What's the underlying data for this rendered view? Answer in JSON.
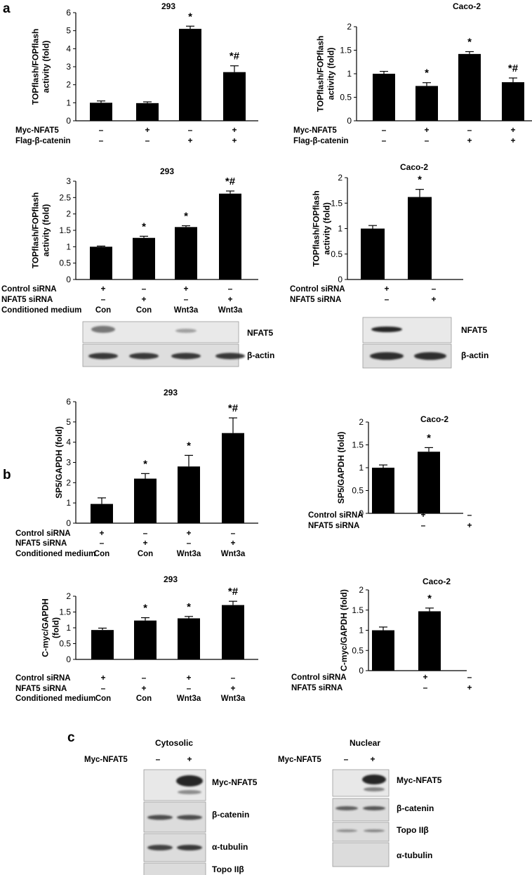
{
  "panels": [
    {
      "id": "a",
      "label": "a"
    },
    {
      "id": "b",
      "label": "b"
    },
    {
      "id": "c",
      "label": "c"
    }
  ],
  "chart_data": [
    {
      "id": "a1",
      "panel": "a",
      "type": "bar",
      "title": "293",
      "ylabel": [
        "TOPflash/FOPflash",
        "activity (fold)"
      ],
      "ylim": [
        0,
        6
      ],
      "yticks": [
        "0",
        "1",
        "2",
        "3",
        "4",
        "5",
        "6"
      ],
      "values": [
        1.0,
        0.98,
        5.1,
        2.7
      ],
      "errors": [
        0.1,
        0.07,
        0.15,
        0.35
      ],
      "annotations": [
        "",
        "",
        "*",
        "*#"
      ],
      "conditions": [
        {
          "label": "Myc-NFAT5",
          "values": [
            "–",
            "+",
            "–",
            "+"
          ]
        },
        {
          "label": "Flag-β-catenin",
          "values": [
            "–",
            "–",
            "+",
            "+"
          ]
        }
      ]
    },
    {
      "id": "a2",
      "panel": "a",
      "type": "bar",
      "title": "Caco-2",
      "ylabel": [
        "TOPflash/FOPflash",
        "activity (fold)"
      ],
      "ylim": [
        0,
        2
      ],
      "yticks": [
        "0",
        "0.5",
        "1",
        "1.5",
        "2"
      ],
      "values": [
        1.0,
        0.74,
        1.42,
        0.82
      ],
      "errors": [
        0.05,
        0.07,
        0.05,
        0.09
      ],
      "annotations": [
        "",
        "*",
        "*",
        "*#"
      ],
      "conditions": [
        {
          "label": "Myc-NFAT5",
          "values": [
            "–",
            "+",
            "–",
            "+"
          ]
        },
        {
          "label": "Flag-β-catenin",
          "values": [
            "–",
            "–",
            "+",
            "+"
          ]
        }
      ]
    },
    {
      "id": "a3",
      "panel": "a",
      "type": "bar",
      "title": "293",
      "ylabel": [
        "TOPflash/FOPflash",
        "activity (fold)"
      ],
      "ylim": [
        0,
        3
      ],
      "yticks": [
        "0",
        "0.5",
        "1",
        "1.5",
        "2",
        "2.5",
        "3"
      ],
      "values": [
        1.0,
        1.27,
        1.6,
        2.62
      ],
      "errors": [
        0.02,
        0.05,
        0.04,
        0.08
      ],
      "annotations": [
        "",
        "*",
        "*",
        "*#"
      ],
      "conditions": [
        {
          "label": "Control siRNA",
          "values": [
            "+",
            "–",
            "+",
            "–"
          ]
        },
        {
          "label": "NFAT5 siRNA",
          "values": [
            "–",
            "+",
            "–",
            "+"
          ]
        },
        {
          "label": "Conditioned medium",
          "values": [
            "Con",
            "Con",
            "Wnt3a",
            "Wnt3a"
          ]
        }
      ]
    },
    {
      "id": "a4",
      "panel": "a",
      "type": "bar",
      "title": "Caco-2",
      "ylabel": [
        "TOPflash/FOPflash",
        "activity (fold)"
      ],
      "ylim": [
        0,
        2
      ],
      "yticks": [
        "0",
        "0.5",
        "1",
        "1.5",
        "2"
      ],
      "values": [
        1.0,
        1.62
      ],
      "errors": [
        0.06,
        0.15
      ],
      "annotations": [
        "",
        "*"
      ],
      "conditions": [
        {
          "label": "Control siRNA",
          "values": [
            "+",
            "–"
          ]
        },
        {
          "label": "NFAT5 siRNA",
          "values": [
            "–",
            "+"
          ]
        }
      ]
    },
    {
      "id": "b1",
      "panel": "b",
      "type": "bar",
      "title": "293",
      "ylabel": [
        "SP5/GAPDH (fold)"
      ],
      "ylim": [
        0,
        6
      ],
      "yticks": [
        "0",
        "1",
        "2",
        "3",
        "4",
        "5",
        "6"
      ],
      "values": [
        0.95,
        2.2,
        2.8,
        4.45
      ],
      "errors": [
        0.3,
        0.25,
        0.55,
        0.75
      ],
      "annotations": [
        "",
        "*",
        "*",
        "*#"
      ],
      "conditions": [
        {
          "label": "Control siRNA",
          "values": [
            "+",
            "–",
            "+",
            "–"
          ]
        },
        {
          "label": "NFAT5 siRNA",
          "values": [
            "–",
            "+",
            "–",
            "+"
          ]
        },
        {
          "label": "Conditioned medium",
          "values": [
            "Con",
            "Con",
            "Wnt3a",
            "Wnt3a"
          ]
        }
      ]
    },
    {
      "id": "b2",
      "panel": "b",
      "type": "bar",
      "title": "Caco-2",
      "ylabel": [
        "SP5/GAPDH (fold)"
      ],
      "ylim": [
        0,
        2
      ],
      "yticks": [
        "0",
        "0.5",
        "1",
        "1.5",
        "2"
      ],
      "values": [
        1.0,
        1.35
      ],
      "errors": [
        0.06,
        0.09
      ],
      "annotations": [
        "",
        "*"
      ],
      "conditions": [
        {
          "label": "Control siRNA",
          "values": [
            "+",
            "–"
          ]
        },
        {
          "label": "NFAT5 siRNA",
          "values": [
            "–",
            "+"
          ]
        }
      ]
    },
    {
      "id": "b3",
      "panel": "b",
      "type": "bar",
      "title": "293",
      "ylabel": [
        "C-myc/GAPDH",
        "(fold)"
      ],
      "ylim": [
        0,
        2
      ],
      "yticks": [
        "0",
        "0.5",
        "1",
        "1.5",
        "2"
      ],
      "values": [
        0.93,
        1.23,
        1.3,
        1.72
      ],
      "errors": [
        0.06,
        0.09,
        0.06,
        0.12
      ],
      "annotations": [
        "",
        "*",
        "*",
        "*#"
      ],
      "conditions": [
        {
          "label": "Control siRNA",
          "values": [
            "+",
            "–",
            "+",
            "–"
          ]
        },
        {
          "label": "NFAT5 siRNA",
          "values": [
            "–",
            "+",
            "–",
            "+"
          ]
        },
        {
          "label": "Conditioned medium",
          "values": [
            "Con",
            "Con",
            "Wnt3a",
            "Wnt3a"
          ]
        }
      ]
    },
    {
      "id": "b4",
      "panel": "b",
      "type": "bar",
      "title": "Caco-2",
      "ylabel": [
        "C-myc/GAPDH (fold)"
      ],
      "ylim": [
        0,
        2
      ],
      "yticks": [
        "0",
        "0.5",
        "1",
        "1.5",
        "2"
      ],
      "values": [
        1.0,
        1.47
      ],
      "errors": [
        0.08,
        0.08
      ],
      "annotations": [
        "",
        "*"
      ],
      "conditions": [
        {
          "label": "Control siRNA",
          "values": [
            "+",
            "–"
          ]
        },
        {
          "label": "NFAT5 siRNA",
          "values": [
            "–",
            "+"
          ]
        }
      ]
    }
  ],
  "blots": [
    {
      "id": "blot-a3",
      "bands": [
        "NFAT5",
        "β-actin"
      ]
    },
    {
      "id": "blot-a4",
      "bands": [
        "NFAT5",
        "β-actin"
      ]
    },
    {
      "id": "blot-c-cyto",
      "title": "Cytosolic",
      "condition_label": "Myc-NFAT5",
      "condition_values": [
        "–",
        "+"
      ],
      "bands": [
        "Myc-NFAT5",
        "β-catenin",
        "α-tubulin",
        "Topo IIβ"
      ]
    },
    {
      "id": "blot-c-nuc",
      "title": "Nuclear",
      "condition_label": "Myc-NFAT5",
      "condition_values": [
        "–",
        "+"
      ],
      "bands": [
        "Myc-NFAT5",
        "β-catenin",
        "Topo IIβ",
        "α-tubulin"
      ]
    }
  ]
}
